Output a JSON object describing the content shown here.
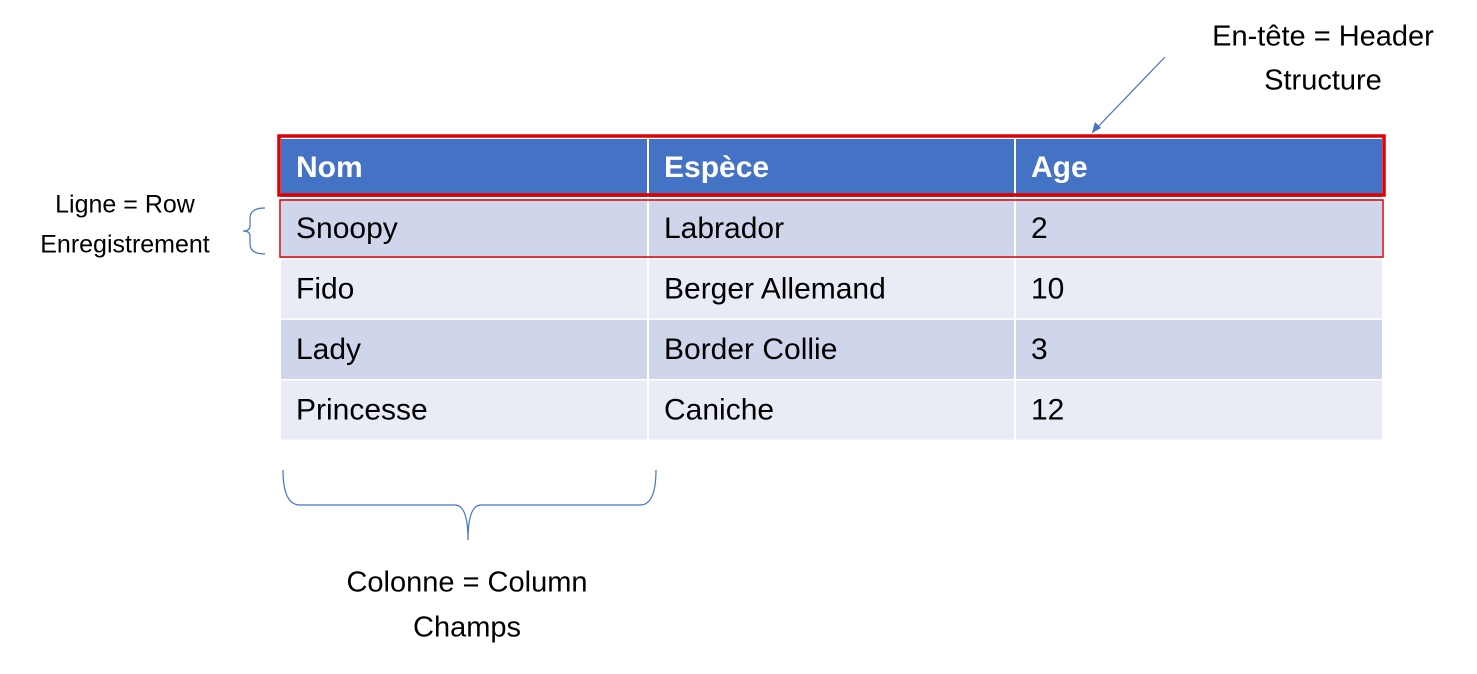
{
  "table": {
    "header": [
      "Nom",
      "Espèce",
      "Age"
    ],
    "rows": [
      [
        "Snoopy",
        "Labrador",
        2
      ],
      [
        "Fido",
        "Berger Allemand",
        10
      ],
      [
        "Lady",
        "Border Collie",
        3
      ],
      [
        "Princesse",
        "Caniche",
        12
      ]
    ]
  },
  "annotations": {
    "header": [
      "En-tête = Header",
      "Structure"
    ],
    "row": [
      "Ligne = Row",
      "Enregistrement"
    ],
    "column": [
      "Colonne = Column",
      "Champs"
    ]
  }
}
